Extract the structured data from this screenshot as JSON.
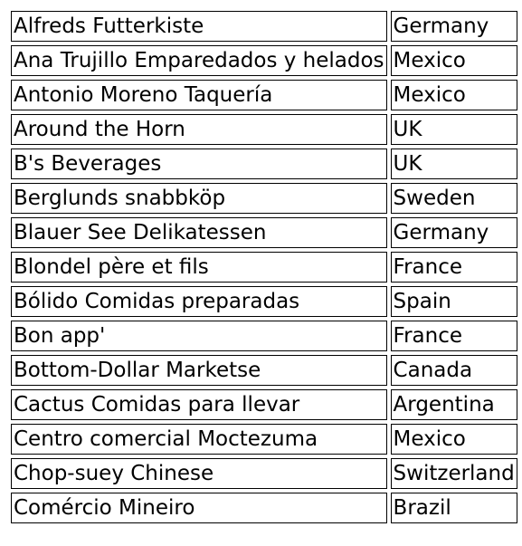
{
  "customers_table": {
    "rows": [
      {
        "name": "Alfreds Futterkiste",
        "country": "Germany"
      },
      {
        "name": "Ana Trujillo Emparedados y helados",
        "country": "Mexico"
      },
      {
        "name": "Antonio Moreno Taquería",
        "country": "Mexico"
      },
      {
        "name": "Around the Horn",
        "country": "UK"
      },
      {
        "name": "B's Beverages",
        "country": "UK"
      },
      {
        "name": "Berglunds snabbköp",
        "country": "Sweden"
      },
      {
        "name": "Blauer See Delikatessen",
        "country": "Germany"
      },
      {
        "name": "Blondel père et fils",
        "country": "France"
      },
      {
        "name": "Bólido Comidas preparadas",
        "country": "Spain"
      },
      {
        "name": "Bon app'",
        "country": "France"
      },
      {
        "name": "Bottom-Dollar Marketse",
        "country": "Canada"
      },
      {
        "name": "Cactus Comidas para llevar",
        "country": "Argentina"
      },
      {
        "name": "Centro comercial Moctezuma",
        "country": "Mexico"
      },
      {
        "name": "Chop-suey Chinese",
        "country": "Switzerland"
      },
      {
        "name": "Comércio Mineiro",
        "country": "Brazil"
      }
    ]
  }
}
